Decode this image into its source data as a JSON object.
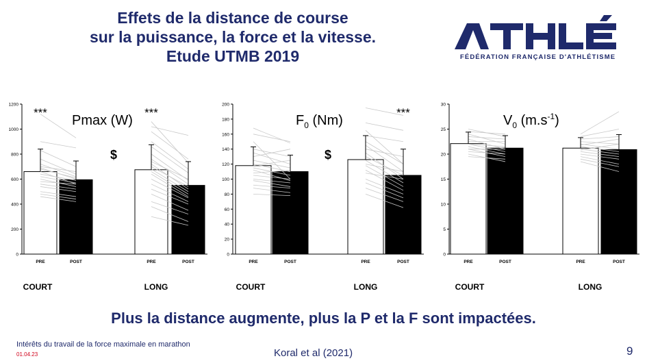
{
  "header": {
    "title_lines": [
      "Effets de la distance de course",
      "sur la puissance, la force et la vitesse.",
      "Etude UTMB 2019"
    ]
  },
  "logo": {
    "wordmark": "ATHLÉ",
    "subtitle": "FÉDÉRATION FRANÇAISE D'ATHLÉTISME"
  },
  "colors": {
    "navy": "#1f2a6b",
    "red": "#d0021b",
    "pre_bar": "#ffffff",
    "post_bar": "#000000",
    "individual_lines": "#c8c8c8"
  },
  "chart_data": [
    {
      "type": "bar",
      "title_main": "Pmax (W)",
      "title_sub": "",
      "title_suffix": "",
      "title_sup": "",
      "ylim": [
        0,
        1200
      ],
      "yticks": [
        0,
        200,
        400,
        600,
        800,
        1000,
        1200
      ],
      "group_labels": [
        "COURT",
        "LONG"
      ],
      "bar_labels": [
        "PRE",
        "POST",
        "PRE",
        "POST"
      ],
      "values": [
        660,
        595,
        675,
        550
      ],
      "errors": [
        180,
        150,
        200,
        190
      ],
      "significance": [
        {
          "text": "***",
          "over_bar": 0
        },
        {
          "text": "***",
          "over_bar": 2
        },
        {
          "text": "$",
          "over_gap": true
        }
      ],
      "individual_pairs": [
        [
          [
            1120,
            930
          ],
          [
            900,
            850
          ],
          [
            830,
            700
          ],
          [
            760,
            640
          ],
          [
            720,
            620
          ],
          [
            700,
            660
          ],
          [
            690,
            600
          ],
          [
            680,
            610
          ],
          [
            660,
            560
          ],
          [
            640,
            590
          ],
          [
            620,
            570
          ],
          [
            600,
            540
          ],
          [
            580,
            560
          ],
          [
            560,
            520
          ],
          [
            540,
            500
          ],
          [
            500,
            460
          ],
          [
            480,
            440
          ],
          [
            460,
            420
          ]
        ],
        [
          [
            1060,
            730
          ],
          [
            1020,
            950
          ],
          [
            980,
            760
          ],
          [
            900,
            680
          ],
          [
            860,
            650
          ],
          [
            800,
            590
          ],
          [
            760,
            560
          ],
          [
            740,
            600
          ],
          [
            720,
            520
          ],
          [
            700,
            540
          ],
          [
            680,
            500
          ],
          [
            660,
            480
          ],
          [
            640,
            460
          ],
          [
            600,
            450
          ],
          [
            560,
            420
          ],
          [
            520,
            400
          ],
          [
            480,
            350
          ],
          [
            420,
            320
          ],
          [
            380,
            260
          ],
          [
            300,
            230
          ]
        ]
      ]
    },
    {
      "type": "bar",
      "title_main": "F",
      "title_sub": "0",
      "title_suffix": " (Nm)",
      "title_sup": "",
      "ylim": [
        0,
        200
      ],
      "yticks": [
        0,
        20,
        40,
        60,
        80,
        100,
        120,
        140,
        160,
        180,
        200
      ],
      "group_labels": [
        "COURT",
        "LONG"
      ],
      "bar_labels": [
        "PRE",
        "POST",
        "PRE",
        "POST"
      ],
      "values": [
        118,
        110,
        126,
        105
      ],
      "errors": [
        25,
        22,
        32,
        35
      ],
      "significance": [
        {
          "text": "***",
          "over_bar": 3
        },
        {
          "text": "$",
          "over_gap": true
        }
      ],
      "individual_pairs": [
        [
          [
            168,
            148
          ],
          [
            160,
            150
          ],
          [
            150,
            100
          ],
          [
            140,
            130
          ],
          [
            135,
            120
          ],
          [
            130,
            140
          ],
          [
            125,
            115
          ],
          [
            120,
            110
          ],
          [
            118,
            125
          ],
          [
            115,
            105
          ],
          [
            112,
            98
          ],
          [
            108,
            112
          ],
          [
            105,
            100
          ],
          [
            100,
            95
          ],
          [
            98,
            90
          ],
          [
            92,
            88
          ],
          [
            88,
            82
          ],
          [
            80,
            78
          ]
        ],
        [
          [
            195,
            185
          ],
          [
            175,
            165
          ],
          [
            165,
            120
          ],
          [
            158,
            150
          ],
          [
            150,
            120
          ],
          [
            145,
            110
          ],
          [
            140,
            130
          ],
          [
            135,
            100
          ],
          [
            130,
            105
          ],
          [
            125,
            95
          ],
          [
            120,
            110
          ],
          [
            118,
            90
          ],
          [
            112,
            85
          ],
          [
            108,
            100
          ],
          [
            100,
            80
          ],
          [
            95,
            75
          ],
          [
            88,
            70
          ],
          [
            80,
            62
          ]
        ]
      ]
    },
    {
      "type": "bar",
      "title_main": "V",
      "title_sub": "0",
      "title_suffix": " (m.s",
      "title_sup": "-1",
      "ylim": [
        0,
        30
      ],
      "yticks": [
        0,
        5,
        10,
        15,
        20,
        25,
        30
      ],
      "group_labels": [
        "COURT",
        "LONG"
      ],
      "bar_labels": [
        "PRE",
        "POST",
        "PRE",
        "POST"
      ],
      "values": [
        22.1,
        21.2,
        21.2,
        20.9
      ],
      "errors": [
        2.3,
        2.5,
        2.1,
        3.0
      ],
      "significance": [],
      "individual_pairs": [
        [
          [
            25,
            23.5
          ],
          [
            24.5,
            24
          ],
          [
            24,
            22
          ],
          [
            23.5,
            23
          ],
          [
            23,
            21
          ],
          [
            22.5,
            22.5
          ],
          [
            22,
            20.5
          ],
          [
            22,
            21.5
          ],
          [
            21.5,
            20
          ],
          [
            21,
            21
          ],
          [
            21,
            19.5
          ],
          [
            20.5,
            20
          ],
          [
            20,
            18.5
          ],
          [
            19.5,
            19
          ]
        ],
        [
          [
            24,
            28.5
          ],
          [
            23.5,
            25
          ],
          [
            23,
            23.5
          ],
          [
            22.5,
            22
          ],
          [
            22,
            21
          ],
          [
            21.8,
            23
          ],
          [
            21.5,
            20.5
          ],
          [
            21,
            20
          ],
          [
            20.8,
            22
          ],
          [
            20.5,
            19.5
          ],
          [
            20,
            19
          ],
          [
            19.5,
            18
          ],
          [
            19,
            17.5
          ],
          [
            18.5,
            16.5
          ]
        ]
      ]
    }
  ],
  "conclusion": "Plus la distance augmente, plus la P et la F sont impactées.",
  "footer": {
    "subject": "Intérêts du travail de la force maximale en marathon",
    "date": "01.04.23",
    "reference": "Koral et al (2021)",
    "page": "9"
  }
}
